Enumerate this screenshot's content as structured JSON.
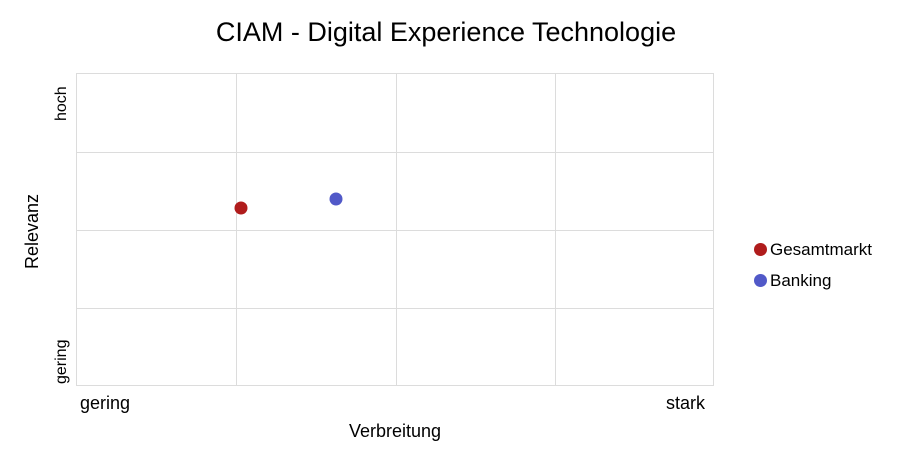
{
  "chart_data": {
    "type": "scatter",
    "title": "CIAM - Digital Experience Technologie",
    "xlabel": "Verbreitung",
    "ylabel": "Relevanz",
    "x_tick_labels": {
      "min": "gering",
      "max": "stark"
    },
    "y_tick_labels": {
      "min": "gering",
      "max": "hoch"
    },
    "xlim": [
      0,
      1
    ],
    "ylim": [
      0,
      1
    ],
    "grid": {
      "on": true,
      "columns": 4,
      "rows": 4
    },
    "legend_position": "right",
    "series": [
      {
        "name": "Gesamtmarkt",
        "color": "#b01c1c",
        "points": [
          {
            "x": 0.257,
            "y": 0.572
          }
        ]
      },
      {
        "name": "Banking",
        "color": "#5159c8",
        "points": [
          {
            "x": 0.406,
            "y": 0.601
          }
        ]
      }
    ]
  },
  "legend": [
    {
      "label": "Gesamtmarkt",
      "color": "#b01c1c"
    },
    {
      "label": "Banking",
      "color": "#5159c8"
    }
  ]
}
